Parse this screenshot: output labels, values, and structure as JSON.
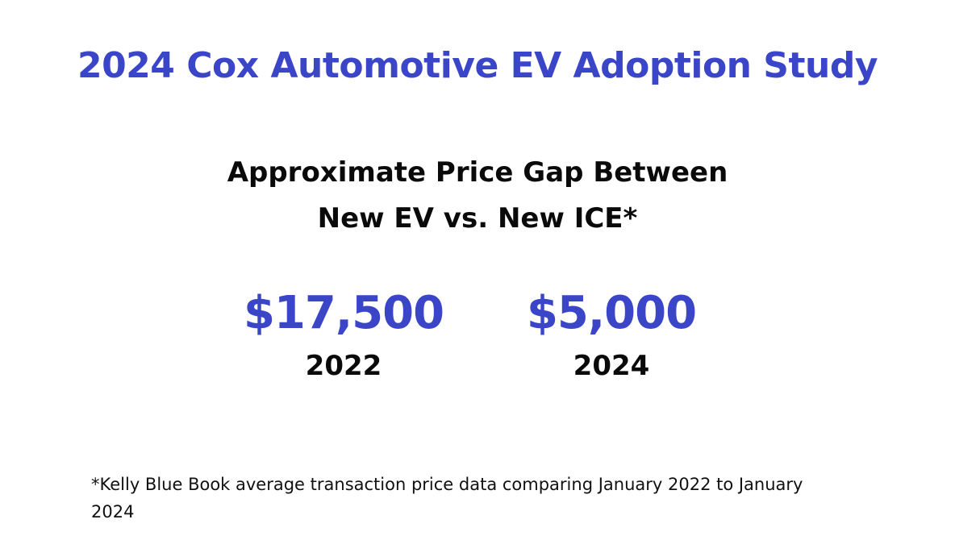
{
  "title": "2024 Cox Automotive EV Adoption Study",
  "subtitle": {
    "line1": "Approximate Price Gap Between",
    "line2": "New EV vs. New ICE*"
  },
  "stats": [
    {
      "value": "$17,500",
      "year": "2022"
    },
    {
      "value": "$5,000",
      "year": "2024"
    }
  ],
  "footnote": "*Kelly Blue Book average transaction price data comparing January 2022 to January 2024",
  "colors": {
    "accent": "#3b45c8",
    "text": "#0a0a0a",
    "background": "#ffffff"
  }
}
